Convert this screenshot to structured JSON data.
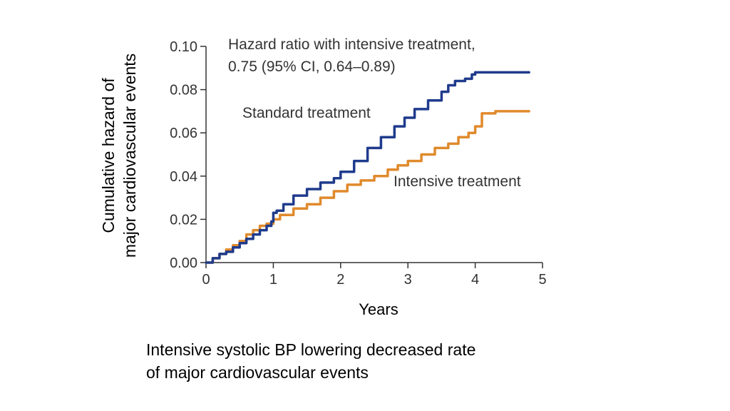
{
  "chart_data": {
    "type": "line",
    "title": "",
    "xlabel": "Years",
    "ylabel_lines": [
      "Cumulative hazard of",
      "major cardiovascular events"
    ],
    "xlim": [
      0,
      5
    ],
    "ylim": [
      0,
      0.1
    ],
    "xticks": [
      0,
      1,
      2,
      3,
      4,
      5
    ],
    "xtick_labels": [
      "0",
      "1",
      "2",
      "3",
      "4",
      "5"
    ],
    "yticks": [
      0,
      0.02,
      0.04,
      0.06,
      0.08,
      0.1
    ],
    "ytick_labels": [
      "0.00",
      "0.02",
      "0.04",
      "0.06",
      "0.08",
      "0.10"
    ],
    "grid": false,
    "annotation_lines": [
      "Hazard ratio with intensive treatment,",
      "0.75 (95% CI, 0.64–0.89)"
    ],
    "series": [
      {
        "name": "Standard treatment",
        "color": "#1f3b8c",
        "x": [
          0,
          0.1,
          0.2,
          0.3,
          0.4,
          0.5,
          0.6,
          0.7,
          0.8,
          0.9,
          0.97,
          1.0,
          1.05,
          1.15,
          1.3,
          1.5,
          1.7,
          1.9,
          2.0,
          2.2,
          2.4,
          2.6,
          2.8,
          2.95,
          3.1,
          3.3,
          3.5,
          3.6,
          3.7,
          3.85,
          3.95,
          4.0,
          4.2,
          4.5,
          4.8
        ],
        "y": [
          0,
          0.002,
          0.004,
          0.005,
          0.007,
          0.009,
          0.011,
          0.013,
          0.015,
          0.017,
          0.019,
          0.023,
          0.024,
          0.027,
          0.031,
          0.034,
          0.037,
          0.039,
          0.042,
          0.047,
          0.053,
          0.058,
          0.063,
          0.067,
          0.071,
          0.075,
          0.079,
          0.082,
          0.084,
          0.085,
          0.087,
          0.088,
          0.088,
          0.088,
          0.088
        ]
      },
      {
        "name": "Intensive treatment",
        "color": "#e08a2c",
        "x": [
          0,
          0.1,
          0.2,
          0.3,
          0.4,
          0.5,
          0.6,
          0.7,
          0.8,
          0.9,
          1.0,
          1.1,
          1.3,
          1.5,
          1.7,
          1.9,
          2.1,
          2.3,
          2.5,
          2.7,
          2.85,
          3.0,
          3.2,
          3.4,
          3.6,
          3.75,
          3.9,
          4.0,
          4.1,
          4.3,
          4.8
        ],
        "y": [
          0,
          0.002,
          0.004,
          0.006,
          0.008,
          0.01,
          0.013,
          0.015,
          0.017,
          0.018,
          0.02,
          0.022,
          0.025,
          0.027,
          0.03,
          0.033,
          0.036,
          0.038,
          0.04,
          0.043,
          0.045,
          0.047,
          0.05,
          0.053,
          0.055,
          0.058,
          0.06,
          0.063,
          0.069,
          0.07,
          0.07
        ]
      }
    ],
    "series_label_text": [
      "Standard treatment",
      "Intensive treatment"
    ]
  },
  "caption": {
    "line1": "Intensive systolic BP lowering decreased rate",
    "line2": "of major cardiovascular events"
  },
  "colors": {
    "axis": "#333333",
    "label": "#333333"
  }
}
